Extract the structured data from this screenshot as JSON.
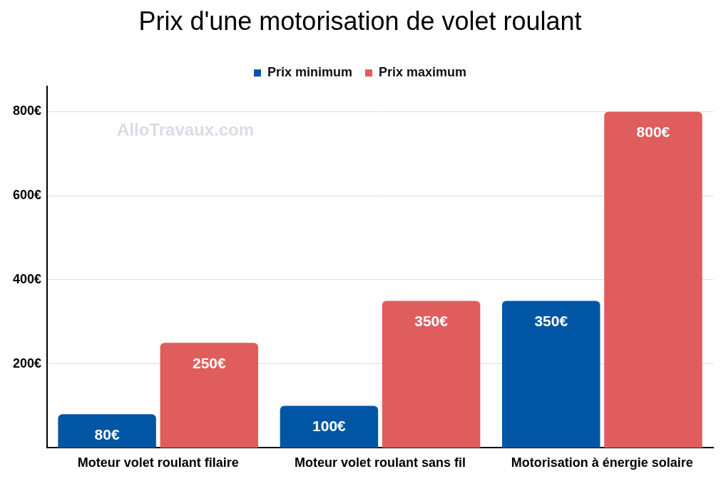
{
  "chart_data": {
    "type": "bar",
    "title": "Prix d'une motorisation de volet roulant",
    "categories": [
      "Moteur volet roulant filaire",
      "Moteur volet roulant sans fil",
      "Motorisation à énergie solaire"
    ],
    "series": [
      {
        "name": "Prix minimum",
        "color": "#0056a4",
        "values": [
          80,
          100,
          350
        ],
        "value_labels": [
          "80€",
          "100€",
          "350€"
        ]
      },
      {
        "name": "Prix maximum",
        "color": "#e05d5d",
        "values": [
          250,
          350,
          800
        ],
        "value_labels": [
          "250€",
          "350€",
          "800€"
        ]
      }
    ],
    "ylim": [
      0,
      860
    ],
    "yticks": [
      {
        "value": 200,
        "label": "200€"
      },
      {
        "value": 400,
        "label": "400€"
      },
      {
        "value": 600,
        "label": "600€"
      },
      {
        "value": 800,
        "label": "800€"
      }
    ],
    "grid": true,
    "legend": "top",
    "data_labels": true,
    "annotations": [
      "AlloTravaux.com"
    ]
  }
}
